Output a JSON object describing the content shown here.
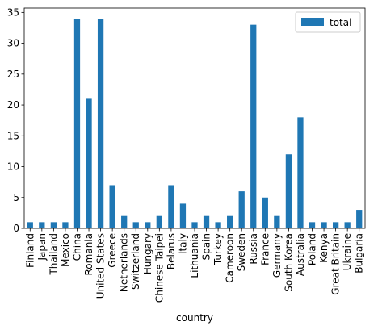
{
  "chart_data": {
    "type": "bar",
    "xlabel": "country",
    "ylabel": "",
    "ylim": [
      0,
      35.7
    ],
    "yticks": [
      0,
      5,
      10,
      15,
      20,
      25,
      30,
      35
    ],
    "grid": false,
    "legend": {
      "placement": "top-right",
      "entries": [
        "total"
      ]
    },
    "categories": [
      "Finland",
      "Japan",
      "Thailand",
      "Mexico",
      "China",
      "Romania",
      "United States",
      "Greece",
      "Netherlands",
      "Switzerland",
      "Hungary",
      "Chinese Taipei",
      "Belarus",
      "Italy",
      "Lithuania",
      "Spain",
      "Turkey",
      "Cameroon",
      "Sweden",
      "Russia",
      "France",
      "Germany",
      "South Korea",
      "Australia",
      "Poland",
      "Kenya",
      "Great Britain",
      "Ukraine",
      "Bulgaria"
    ],
    "series": [
      {
        "name": "total",
        "color": "#1f77b4",
        "values": [
          1,
          1,
          1,
          1,
          34,
          21,
          34,
          7,
          2,
          1,
          1,
          2,
          7,
          4,
          1,
          2,
          1,
          2,
          6,
          33,
          5,
          2,
          12,
          18,
          1,
          1,
          1,
          1,
          3
        ]
      }
    ]
  }
}
